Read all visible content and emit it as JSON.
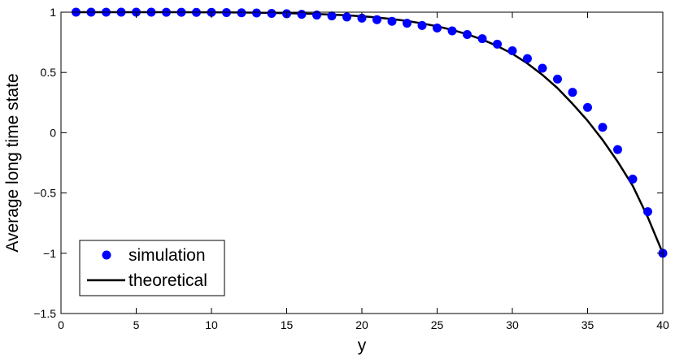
{
  "chart_data": {
    "type": "scatter",
    "xlabel": "y",
    "ylabel": "Average long time state",
    "xlim": [
      0,
      40
    ],
    "ylim": [
      -1.5,
      1
    ],
    "xticks": [
      0,
      5,
      10,
      15,
      20,
      25,
      30,
      35,
      40
    ],
    "xtick_labels": [
      "0",
      "5",
      "10",
      "15",
      "20",
      "25",
      "30",
      "35",
      "40"
    ],
    "yticks": [
      -1.5,
      -1,
      -0.5,
      0,
      0.5,
      1
    ],
    "ytick_labels": [
      "−1.5",
      "−1",
      "−0.5",
      "0",
      "0.5",
      "1"
    ],
    "grid": false,
    "legend_position": "bottom-left",
    "series": [
      {
        "name": "simulation",
        "type": "scatter",
        "color": "#0000ff",
        "x": [
          1,
          2,
          3,
          4,
          5,
          6,
          7,
          8,
          9,
          10,
          11,
          12,
          13,
          14,
          15,
          16,
          17,
          18,
          19,
          20,
          21,
          22,
          23,
          24,
          25,
          26,
          27,
          28,
          29,
          30,
          31,
          32,
          33,
          34,
          35,
          36,
          37,
          38,
          39,
          40
        ],
        "y": [
          1.0,
          1.0,
          1.0,
          1.0,
          1.0,
          1.0,
          0.999,
          0.999,
          0.998,
          0.998,
          0.997,
          0.995,
          0.993,
          0.99,
          0.987,
          0.982,
          0.976,
          0.969,
          0.96,
          0.95,
          0.938,
          0.924,
          0.908,
          0.89,
          0.869,
          0.845,
          0.815,
          0.78,
          0.735,
          0.68,
          0.615,
          0.535,
          0.445,
          0.335,
          0.21,
          0.045,
          -0.14,
          -0.385,
          -0.655,
          -1.0
        ]
      },
      {
        "name": "theoretical",
        "type": "line",
        "color": "#000000",
        "x": [
          1,
          2,
          3,
          4,
          5,
          6,
          7,
          8,
          9,
          10,
          11,
          12,
          13,
          14,
          15,
          16,
          17,
          18,
          19,
          20,
          21,
          22,
          23,
          24,
          25,
          26,
          27,
          28,
          29,
          30,
          31,
          32,
          33,
          34,
          35,
          36,
          37,
          38,
          39,
          40
        ],
        "y": [
          1.0,
          1.0,
          1.0,
          1.0,
          1.0,
          1.0,
          1.0,
          1.0,
          0.999,
          0.999,
          0.998,
          0.997,
          0.996,
          0.994,
          0.992,
          0.989,
          0.985,
          0.98,
          0.974,
          0.966,
          0.956,
          0.943,
          0.927,
          0.907,
          0.883,
          0.853,
          0.817,
          0.773,
          0.72,
          0.655,
          0.575,
          0.48,
          0.37,
          0.24,
          0.1,
          -0.06,
          -0.24,
          -0.44,
          -0.7,
          -1.0
        ]
      }
    ]
  }
}
